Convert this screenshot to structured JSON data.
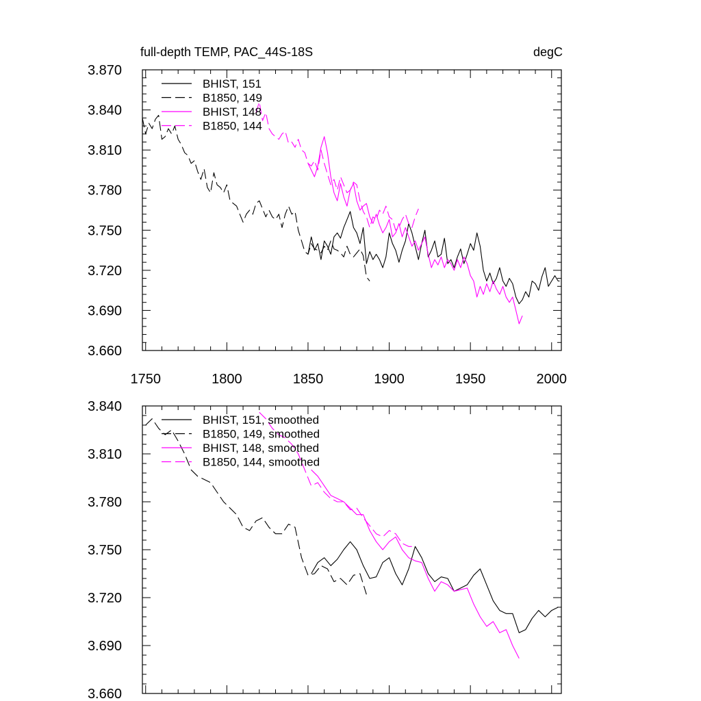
{
  "chart_data": [
    {
      "type": "line",
      "title": "full-depth TEMP, PAC_44S-18S",
      "units": "degC",
      "xlim": [
        1748,
        2006
      ],
      "ylim": [
        3.66,
        3.87
      ],
      "xticks": [
        1750,
        1800,
        1850,
        1900,
        1950,
        2000
      ],
      "yticks": [
        3.66,
        3.69,
        3.72,
        3.75,
        3.78,
        3.81,
        3.84,
        3.87
      ],
      "ytick_labels": [
        "3.660",
        "3.690",
        "3.720",
        "3.750",
        "3.780",
        "3.810",
        "3.840",
        "3.870"
      ],
      "xtick_labels": [
        "1750",
        "1800",
        "1850",
        "1900",
        "1950",
        "2000"
      ],
      "grid": false,
      "legend_position": "top-left",
      "series": [
        {
          "name": "BHIST, 151",
          "color": "#000000",
          "dash": "solid",
          "x": [
            1850,
            1852,
            1854,
            1856,
            1858,
            1860,
            1862,
            1864,
            1866,
            1868,
            1870,
            1872,
            1874,
            1876,
            1878,
            1880,
            1882,
            1884,
            1886,
            1888,
            1890,
            1892,
            1894,
            1896,
            1898,
            1900,
            1902,
            1904,
            1906,
            1908,
            1910,
            1912,
            1914,
            1916,
            1918,
            1920,
            1922,
            1924,
            1926,
            1928,
            1930,
            1932,
            1934,
            1936,
            1938,
            1940,
            1942,
            1944,
            1946,
            1948,
            1950,
            1952,
            1954,
            1956,
            1958,
            1960,
            1962,
            1964,
            1966,
            1968,
            1970,
            1972,
            1974,
            1976,
            1978,
            1980,
            1982,
            1984,
            1986,
            1988,
            1990,
            1992,
            1994,
            1996,
            1998,
            2000,
            2002,
            2004,
            2005
          ],
          "values": [
            3.732,
            3.745,
            3.735,
            3.74,
            3.728,
            3.742,
            3.738,
            3.732,
            3.745,
            3.748,
            3.744,
            3.752,
            3.758,
            3.764,
            3.752,
            3.748,
            3.74,
            3.752,
            3.725,
            3.734,
            3.728,
            3.732,
            3.728,
            3.722,
            3.73,
            3.748,
            3.74,
            3.735,
            3.726,
            3.735,
            3.742,
            3.755,
            3.748,
            3.738,
            3.728,
            3.74,
            3.75,
            3.73,
            3.735,
            3.742,
            3.73,
            3.732,
            3.744,
            3.725,
            3.728,
            3.722,
            3.73,
            3.736,
            3.725,
            3.732,
            3.74,
            3.735,
            3.748,
            3.738,
            3.72,
            3.712,
            3.718,
            3.71,
            3.714,
            3.722,
            3.712,
            3.708,
            3.714,
            3.71,
            3.7,
            3.695,
            3.698,
            3.704,
            3.7,
            3.712,
            3.71,
            3.705,
            3.715,
            3.722,
            3.708,
            3.712,
            3.716,
            3.712,
            3.712
          ]
        },
        {
          "name": "B1850, 149",
          "color": "#000000",
          "dash": "dashed",
          "x": [
            1748,
            1750,
            1752,
            1754,
            1756,
            1758,
            1760,
            1762,
            1764,
            1766,
            1768,
            1770,
            1772,
            1774,
            1776,
            1778,
            1780,
            1782,
            1784,
            1786,
            1788,
            1790,
            1792,
            1794,
            1796,
            1798,
            1800,
            1802,
            1804,
            1806,
            1808,
            1810,
            1812,
            1814,
            1816,
            1818,
            1820,
            1822,
            1824,
            1826,
            1828,
            1830,
            1832,
            1834,
            1836,
            1838,
            1840,
            1842,
            1844,
            1846,
            1848,
            1850,
            1852,
            1854,
            1856,
            1858,
            1860,
            1862,
            1864,
            1866,
            1868,
            1870,
            1872,
            1874,
            1876,
            1878,
            1880,
            1882,
            1884,
            1886,
            1888
          ],
          "values": [
            3.834,
            3.822,
            3.83,
            3.826,
            3.833,
            3.836,
            3.818,
            3.82,
            3.826,
            3.822,
            3.828,
            3.818,
            3.814,
            3.808,
            3.806,
            3.8,
            3.802,
            3.794,
            3.788,
            3.796,
            3.782,
            3.778,
            3.793,
            3.784,
            3.782,
            3.778,
            3.784,
            3.772,
            3.77,
            3.768,
            3.762,
            3.756,
            3.762,
            3.765,
            3.762,
            3.77,
            3.772,
            3.766,
            3.76,
            3.765,
            3.76,
            3.758,
            3.762,
            3.752,
            3.762,
            3.768,
            3.762,
            3.764,
            3.75,
            3.742,
            3.734,
            3.732,
            3.74,
            3.736,
            3.735,
            3.733,
            3.738,
            3.735,
            3.742,
            3.736,
            3.735,
            3.733,
            3.73,
            3.738,
            3.732,
            3.73,
            3.733,
            3.736,
            3.731,
            3.715,
            3.712
          ]
        },
        {
          "name": "BHIST, 148",
          "color": "#ff00ff",
          "dash": "solid",
          "x": [
            1850,
            1852,
            1854,
            1856,
            1858,
            1860,
            1862,
            1864,
            1866,
            1868,
            1870,
            1872,
            1874,
            1876,
            1878,
            1880,
            1882,
            1884,
            1886,
            1888,
            1890,
            1892,
            1894,
            1896,
            1898,
            1900,
            1902,
            1904,
            1906,
            1908,
            1910,
            1912,
            1914,
            1916,
            1918,
            1920,
            1922,
            1924,
            1926,
            1928,
            1930,
            1932,
            1934,
            1936,
            1938,
            1940,
            1942,
            1944,
            1946,
            1948,
            1950,
            1952,
            1954,
            1956,
            1958,
            1960,
            1962,
            1964,
            1966,
            1968,
            1970,
            1972,
            1974,
            1976,
            1978,
            1980,
            1982
          ],
          "values": [
            3.8,
            3.795,
            3.79,
            3.798,
            3.812,
            3.82,
            3.808,
            3.79,
            3.778,
            3.772,
            3.785,
            3.775,
            3.768,
            3.78,
            3.785,
            3.772,
            3.765,
            3.768,
            3.77,
            3.76,
            3.755,
            3.762,
            3.754,
            3.748,
            3.752,
            3.758,
            3.745,
            3.748,
            3.755,
            3.745,
            3.752,
            3.745,
            3.738,
            3.742,
            3.735,
            3.74,
            3.745,
            3.732,
            3.722,
            3.728,
            3.724,
            3.73,
            3.722,
            3.728,
            3.725,
            3.72,
            3.728,
            3.722,
            3.73,
            3.725,
            3.716,
            3.712,
            3.7,
            3.708,
            3.702,
            3.71,
            3.704,
            3.712,
            3.706,
            3.702,
            3.708,
            3.7,
            3.696,
            3.7,
            3.69,
            3.68,
            3.686
          ]
        },
        {
          "name": "B1850, 144",
          "color": "#ff00ff",
          "dash": "dashed",
          "x": [
            1818,
            1820,
            1822,
            1824,
            1826,
            1828,
            1830,
            1832,
            1834,
            1836,
            1838,
            1840,
            1842,
            1844,
            1846,
            1848,
            1850,
            1852,
            1854,
            1856,
            1858,
            1860,
            1862,
            1864,
            1866,
            1868,
            1870,
            1872,
            1874,
            1876,
            1878,
            1880,
            1882,
            1884,
            1886,
            1888,
            1890,
            1892,
            1894,
            1896,
            1898,
            1900,
            1902,
            1904,
            1906,
            1908,
            1910,
            1912,
            1914,
            1916,
            1918
          ],
          "values": [
            3.838,
            3.846,
            3.832,
            3.838,
            3.826,
            3.822,
            3.82,
            3.818,
            3.822,
            3.824,
            3.815,
            3.816,
            3.812,
            3.818,
            3.81,
            3.808,
            3.8,
            3.798,
            3.802,
            3.795,
            3.81,
            3.8,
            3.792,
            3.784,
            3.788,
            3.78,
            3.79,
            3.784,
            3.778,
            3.78,
            3.786,
            3.784,
            3.772,
            3.764,
            3.76,
            3.752,
            3.76,
            3.758,
            3.765,
            3.762,
            3.768,
            3.76,
            3.758,
            3.75,
            3.752,
            3.758,
            3.762,
            3.755,
            3.752,
            3.76,
            3.766
          ]
        }
      ]
    },
    {
      "type": "line",
      "xlim": [
        1748,
        2006
      ],
      "ylim": [
        3.66,
        3.84
      ],
      "xticks": [
        1750,
        1800,
        1850,
        1900,
        1950,
        2000
      ],
      "yticks": [
        3.66,
        3.69,
        3.72,
        3.75,
        3.78,
        3.81,
        3.84
      ],
      "ytick_labels": [
        "3.660",
        "3.690",
        "3.720",
        "3.750",
        "3.780",
        "3.810",
        "3.840"
      ],
      "grid": false,
      "legend_position": "top-left",
      "series": [
        {
          "name": "BHIST, 151, smoothed",
          "color": "#000000",
          "dash": "solid",
          "x": [
            1852,
            1856,
            1860,
            1864,
            1868,
            1872,
            1876,
            1880,
            1884,
            1888,
            1892,
            1896,
            1900,
            1904,
            1908,
            1912,
            1916,
            1920,
            1924,
            1928,
            1932,
            1936,
            1940,
            1944,
            1948,
            1952,
            1956,
            1960,
            1964,
            1968,
            1972,
            1976,
            1980,
            1984,
            1988,
            1992,
            1996,
            2000,
            2004
          ],
          "values": [
            3.735,
            3.742,
            3.745,
            3.74,
            3.744,
            3.75,
            3.755,
            3.75,
            3.74,
            3.732,
            3.733,
            3.742,
            3.745,
            3.735,
            3.728,
            3.738,
            3.752,
            3.745,
            3.735,
            3.73,
            3.733,
            3.732,
            3.724,
            3.726,
            3.728,
            3.734,
            3.738,
            3.728,
            3.718,
            3.712,
            3.71,
            3.71,
            3.698,
            3.7,
            3.707,
            3.712,
            3.708,
            3.712,
            3.714
          ]
        },
        {
          "name": "B1850, 149, smoothed",
          "color": "#000000",
          "dash": "dashed",
          "x": [
            1750,
            1754,
            1758,
            1762,
            1766,
            1770,
            1774,
            1778,
            1782,
            1786,
            1790,
            1794,
            1798,
            1802,
            1806,
            1810,
            1814,
            1818,
            1822,
            1826,
            1830,
            1834,
            1838,
            1842,
            1846,
            1850,
            1854,
            1858,
            1862,
            1866,
            1870,
            1874,
            1878,
            1882,
            1886
          ],
          "values": [
            3.828,
            3.832,
            3.826,
            3.822,
            3.825,
            3.818,
            3.81,
            3.8,
            3.796,
            3.794,
            3.792,
            3.786,
            3.78,
            3.776,
            3.772,
            3.764,
            3.762,
            3.768,
            3.77,
            3.764,
            3.76,
            3.76,
            3.766,
            3.764,
            3.745,
            3.734,
            3.735,
            3.74,
            3.738,
            3.73,
            3.732,
            3.728,
            3.734,
            3.735,
            3.722
          ]
        },
        {
          "name": "BHIST, 148, smoothed",
          "color": "#ff00ff",
          "dash": "solid",
          "x": [
            1852,
            1856,
            1860,
            1864,
            1868,
            1872,
            1876,
            1880,
            1884,
            1888,
            1892,
            1896,
            1900,
            1904,
            1908,
            1912,
            1916,
            1920,
            1924,
            1928,
            1932,
            1936,
            1940,
            1944,
            1948,
            1952,
            1956,
            1960,
            1964,
            1968,
            1972,
            1976,
            1980
          ],
          "values": [
            3.8,
            3.796,
            3.79,
            3.784,
            3.782,
            3.78,
            3.776,
            3.772,
            3.772,
            3.762,
            3.755,
            3.75,
            3.755,
            3.758,
            3.75,
            3.745,
            3.743,
            3.742,
            3.732,
            3.724,
            3.73,
            3.728,
            3.724,
            3.725,
            3.726,
            3.716,
            3.708,
            3.702,
            3.705,
            3.698,
            3.7,
            3.69,
            3.682
          ]
        },
        {
          "name": "B1850, 144, smoothed",
          "color": "#ff00ff",
          "dash": "dashed",
          "x": [
            1820,
            1824,
            1828,
            1832,
            1836,
            1840,
            1844,
            1848,
            1852,
            1856,
            1860,
            1864,
            1868,
            1872,
            1876,
            1880,
            1884,
            1888,
            1892,
            1896,
            1900,
            1904,
            1908,
            1912,
            1916
          ],
          "values": [
            3.836,
            3.832,
            3.826,
            3.822,
            3.82,
            3.816,
            3.81,
            3.8,
            3.79,
            3.792,
            3.786,
            3.782,
            3.78,
            3.78,
            3.775,
            3.776,
            3.77,
            3.765,
            3.76,
            3.758,
            3.762,
            3.76,
            3.754,
            3.752,
            3.752
          ]
        }
      ]
    }
  ]
}
